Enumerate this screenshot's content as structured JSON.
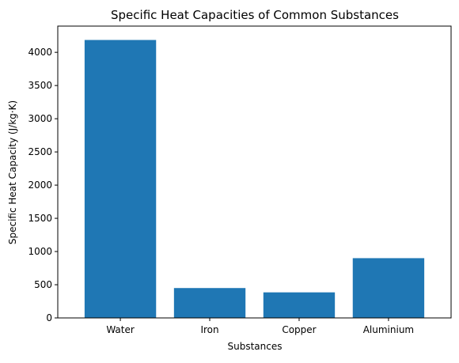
{
  "chart_data": {
    "type": "bar",
    "title": "Specific Heat Capacities of Common Substances",
    "xlabel": "Substances",
    "ylabel": "Specific Heat Capacity (J/kg·K)",
    "categories": [
      "Water",
      "Iron",
      "Copper",
      "Aluminium"
    ],
    "values": [
      4186,
      450,
      385,
      900
    ],
    "ylim": [
      0,
      4395
    ],
    "yticks": [
      0,
      500,
      1000,
      1500,
      2000,
      2500,
      3000,
      3500,
      4000
    ],
    "bar_color": "#1f77b4",
    "grid": false,
    "legend": "none"
  }
}
